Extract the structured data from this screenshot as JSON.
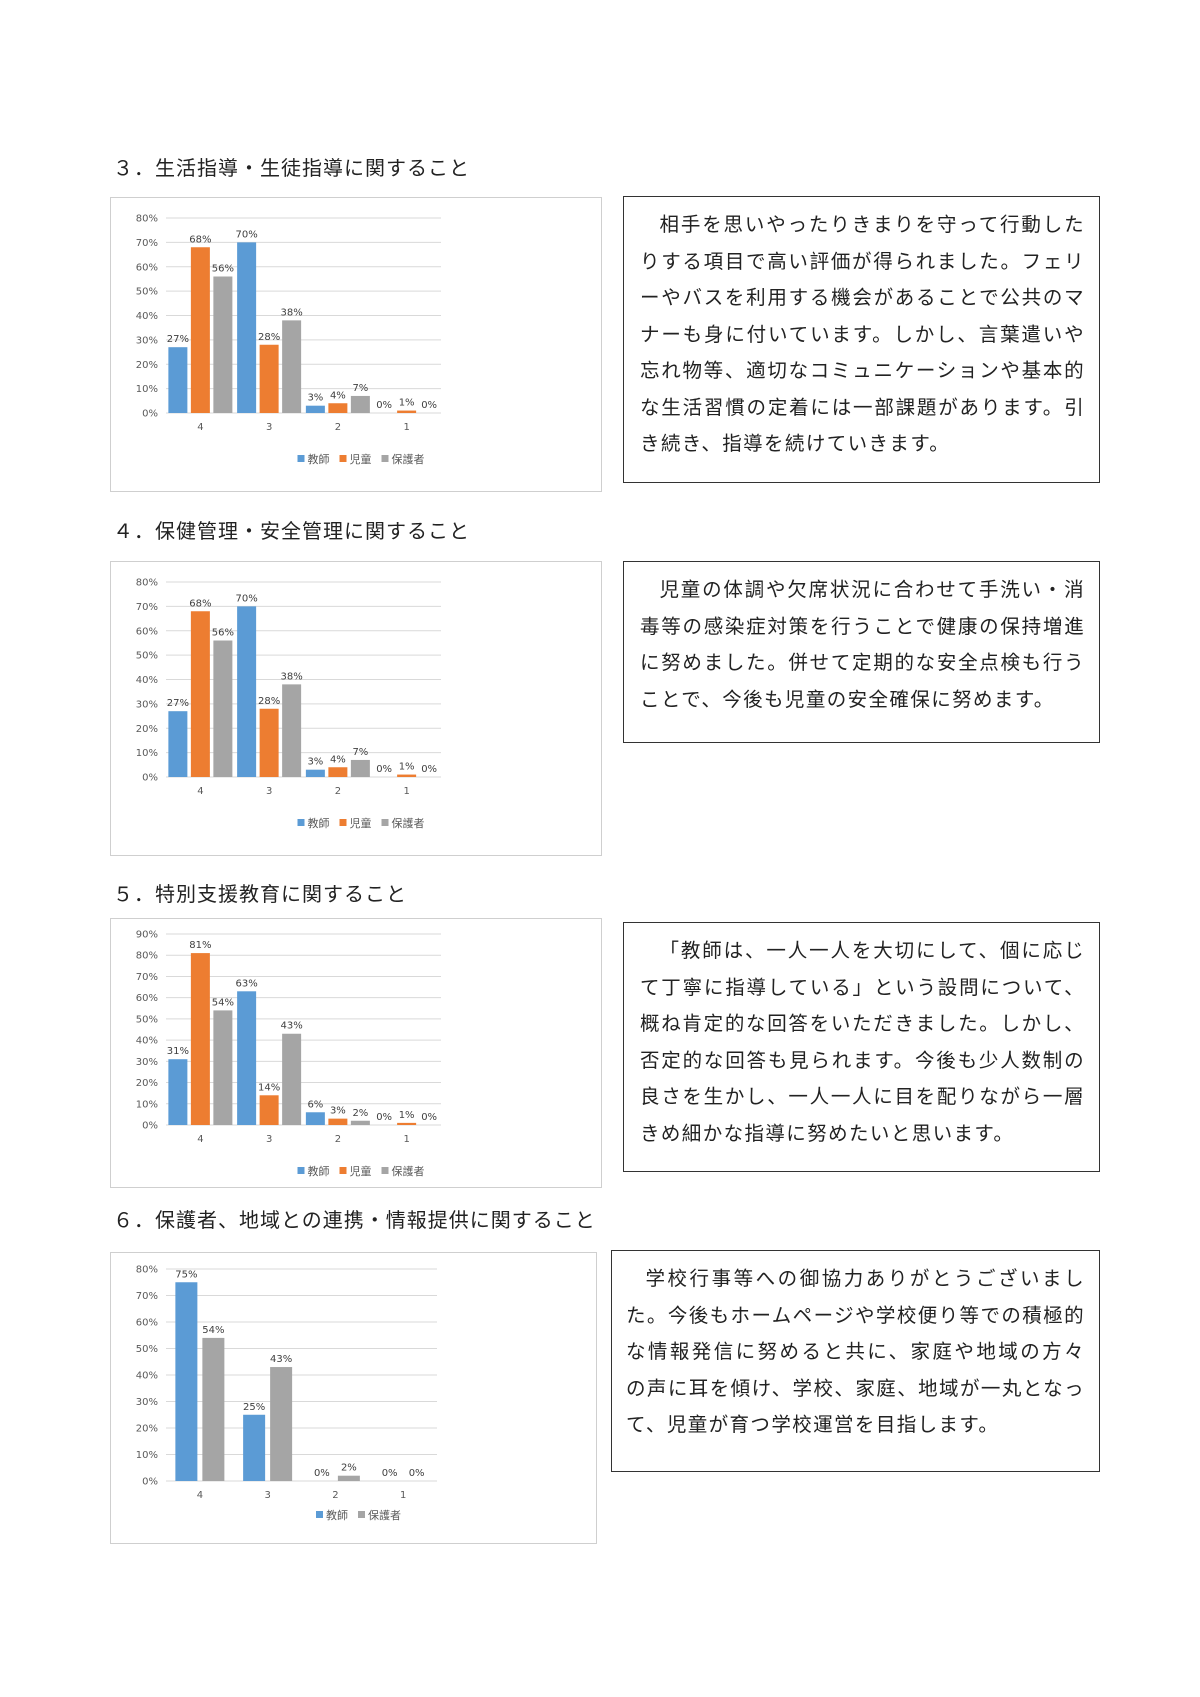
{
  "sections": [
    {
      "heading": "３．生活指導・生徒指導に関すること",
      "comment": "相手を思いやったりきまりを守って行動したりする項目で高い評価が得られました。フェリーやバスを利用する機会があることで公共のマナーも身に付いています。しかし、言葉遣いや忘れ物等、適切なコミュニケーションや基本的な生活習慣の定着には一部課題があります。引き続き、指導を続けていきます。"
    },
    {
      "heading": "４．保健管理・安全管理に関すること",
      "comment": "児童の体調や欠席状況に合わせて手洗い・消毒等の感染症対策を行うことで健康の保持増進に努めました。併せて定期的な安全点検も行うことで、今後も児童の安全確保に努めます。"
    },
    {
      "heading": "５．特別支援教育に関すること",
      "comment": "「教師は、一人一人を大切にして、個に応じて丁寧に指導している」という設問について、概ね肯定的な回答をいただきました。しかし、否定的な回答も見られます。今後も少人数制の良さを生かし、一人一人に目を配りながら一層きめ細かな指導に努めたいと思います。"
    },
    {
      "heading": "６．保護者、地域との連携・情報提供に関すること",
      "comment": "学校行事等への御協力ありがとうございました。今後もホームページや学校便り等での積極的な情報発信に努めると共に、家庭や地域の方々の声に耳を傾け、学校、家庭、地域が一丸となって、児童が育つ学校運営を目指します。"
    }
  ],
  "chart_data": [
    {
      "type": "bar",
      "categories": [
        "4",
        "3",
        "2",
        "1"
      ],
      "series": [
        {
          "name": "教師",
          "color": "#5b9bd5",
          "values": [
            27,
            70,
            3,
            0
          ],
          "labels": [
            "27%",
            "70%",
            "3%",
            "0%"
          ]
        },
        {
          "name": "児童",
          "color": "#ed7d31",
          "values": [
            68,
            28,
            4,
            1
          ],
          "labels": [
            "68%",
            "28%",
            "4%",
            "1%"
          ]
        },
        {
          "name": "保護者",
          "color": "#a5a5a5",
          "values": [
            56,
            38,
            7,
            0
          ],
          "labels": [
            "56%",
            "38%",
            "7%",
            "0%"
          ]
        }
      ],
      "ylim": [
        0,
        80
      ],
      "yticks": [
        "0%",
        "10%",
        "20%",
        "30%",
        "40%",
        "50%",
        "60%",
        "70%",
        "80%"
      ],
      "grid": true,
      "legend": "bottom"
    },
    {
      "type": "bar",
      "categories": [
        "4",
        "3",
        "2",
        "1"
      ],
      "series": [
        {
          "name": "教師",
          "color": "#5b9bd5",
          "values": [
            27,
            70,
            3,
            0
          ],
          "labels": [
            "27%",
            "70%",
            "3%",
            "0%"
          ]
        },
        {
          "name": "児童",
          "color": "#ed7d31",
          "values": [
            68,
            28,
            4,
            1
          ],
          "labels": [
            "68%",
            "28%",
            "4%",
            "1%"
          ]
        },
        {
          "name": "保護者",
          "color": "#a5a5a5",
          "values": [
            56,
            38,
            7,
            0
          ],
          "labels": [
            "56%",
            "38%",
            "7%",
            "0%"
          ]
        }
      ],
      "ylim": [
        0,
        80
      ],
      "yticks": [
        "0%",
        "10%",
        "20%",
        "30%",
        "40%",
        "50%",
        "60%",
        "70%",
        "80%"
      ],
      "grid": true,
      "legend": "bottom"
    },
    {
      "type": "bar",
      "categories": [
        "4",
        "3",
        "2",
        "1"
      ],
      "series": [
        {
          "name": "教師",
          "color": "#5b9bd5",
          "values": [
            31,
            63,
            6,
            0
          ],
          "labels": [
            "31%",
            "63%",
            "6%",
            "0%"
          ]
        },
        {
          "name": "児童",
          "color": "#ed7d31",
          "values": [
            81,
            14,
            3,
            1
          ],
          "labels": [
            "81%",
            "14%",
            "3%",
            "1%"
          ]
        },
        {
          "name": "保護者",
          "color": "#a5a5a5",
          "values": [
            54,
            43,
            2,
            0
          ],
          "labels": [
            "54%",
            "43%",
            "2%",
            "0%"
          ]
        }
      ],
      "ylim": [
        0,
        90
      ],
      "yticks": [
        "0%",
        "10%",
        "20%",
        "30%",
        "40%",
        "50%",
        "60%",
        "70%",
        "80%",
        "90%"
      ],
      "grid": true,
      "legend": "bottom"
    },
    {
      "type": "bar",
      "categories": [
        "4",
        "3",
        "2",
        "1"
      ],
      "series": [
        {
          "name": "教師",
          "color": "#5b9bd5",
          "values": [
            75,
            25,
            0,
            0
          ],
          "labels": [
            "75%",
            "25%",
            "0%",
            "0%"
          ]
        },
        {
          "name": "保護者",
          "color": "#a5a5a5",
          "values": [
            54,
            43,
            2,
            0
          ],
          "labels": [
            "54%",
            "43%",
            "2%",
            "0%"
          ]
        }
      ],
      "ylim": [
        0,
        80
      ],
      "yticks": [
        "0%",
        "10%",
        "20%",
        "30%",
        "40%",
        "50%",
        "60%",
        "70%",
        "80%"
      ],
      "grid": true,
      "legend": "bottom"
    }
  ]
}
